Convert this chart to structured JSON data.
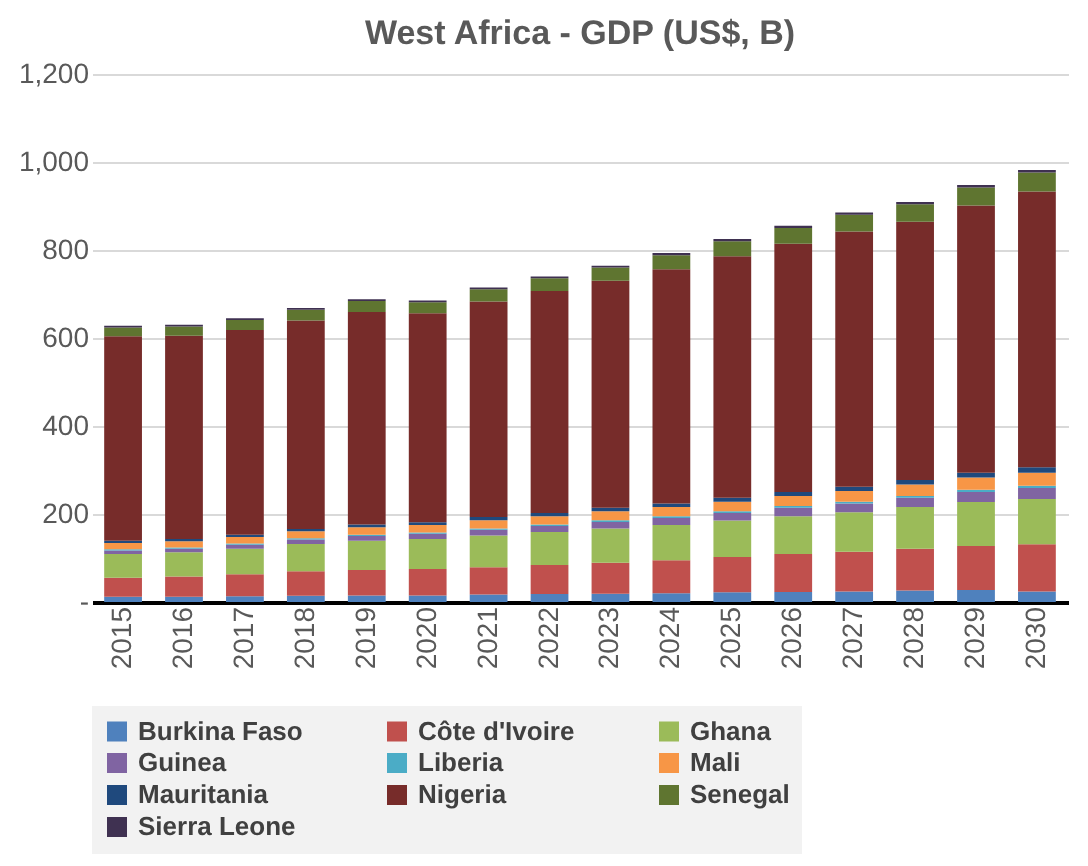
{
  "chart_data": {
    "type": "bar",
    "stacked": true,
    "title": "West Africa - GDP (US$, B)",
    "categories": [
      "2015",
      "2016",
      "2017",
      "2018",
      "2019",
      "2020",
      "2021",
      "2022",
      "2023",
      "2024",
      "2025",
      "2026",
      "2027",
      "2028",
      "2029",
      "2030"
    ],
    "series": [
      {
        "name": "Burkina Faso",
        "color": "#4f81bd",
        "values": [
          12,
          12,
          13,
          14,
          15,
          15,
          17,
          18,
          19,
          20,
          22,
          23,
          24,
          26,
          27,
          24
        ]
      },
      {
        "name": "Côte d'Ivoire",
        "color": "#c0504d",
        "values": [
          43,
          46,
          50,
          56,
          58,
          60,
          62,
          66,
          70,
          75,
          80,
          86,
          90,
          95,
          100,
          107
        ]
      },
      {
        "name": "Ghana",
        "color": "#9bbb59",
        "values": [
          54,
          55,
          58,
          62,
          66,
          68,
          72,
          75,
          78,
          80,
          83,
          86,
          90,
          95,
          100,
          103
        ]
      },
      {
        "name": "Guinea",
        "color": "#8064a2",
        "values": [
          8,
          8,
          9,
          10,
          11,
          12,
          13,
          14,
          15,
          16,
          17,
          19,
          20,
          21,
          23,
          25
        ]
      },
      {
        "name": "Liberia",
        "color": "#4bacc6",
        "values": [
          3,
          3,
          3,
          3,
          3,
          3,
          3,
          3,
          4,
          4,
          4,
          4,
          4,
          4,
          5,
          5
        ]
      },
      {
        "name": "Mali",
        "color": "#f79646",
        "values": [
          14,
          14,
          15,
          16,
          17,
          17,
          19,
          19,
          20,
          21,
          22,
          23,
          24,
          26,
          28,
          30
        ]
      },
      {
        "name": "Mauritania",
        "color": "#1f497d",
        "values": [
          5,
          5,
          5,
          5,
          6,
          6,
          7,
          7,
          8,
          8,
          9,
          9,
          10,
          10,
          11,
          12
        ]
      },
      {
        "name": "Nigeria",
        "color": "#772c2a",
        "values": [
          465,
          462,
          465,
          474,
          483,
          475,
          490,
          505,
          516,
          532,
          549,
          564,
          580,
          587,
          607,
          627
        ]
      },
      {
        "name": "Senegal",
        "color": "#5f7530",
        "values": [
          20,
          21,
          23,
          24,
          25,
          25,
          28,
          29,
          30,
          32,
          34,
          36,
          38,
          40,
          41,
          43
        ]
      },
      {
        "name": "Sierra Leone",
        "color": "#3f3151",
        "values": [
          4,
          4,
          4,
          4,
          4,
          4,
          4,
          4,
          4,
          5,
          5,
          5,
          5,
          5,
          6,
          6
        ]
      }
    ],
    "ylim": [
      0,
      1200
    ],
    "yticks": [
      {
        "value": 0,
        "label": "-"
      },
      200,
      400,
      600,
      800,
      {
        "value": 1000,
        "label": "1,000"
      },
      {
        "value": 1200,
        "label": "1,200"
      }
    ],
    "grid": "y",
    "legend": "bottom"
  }
}
